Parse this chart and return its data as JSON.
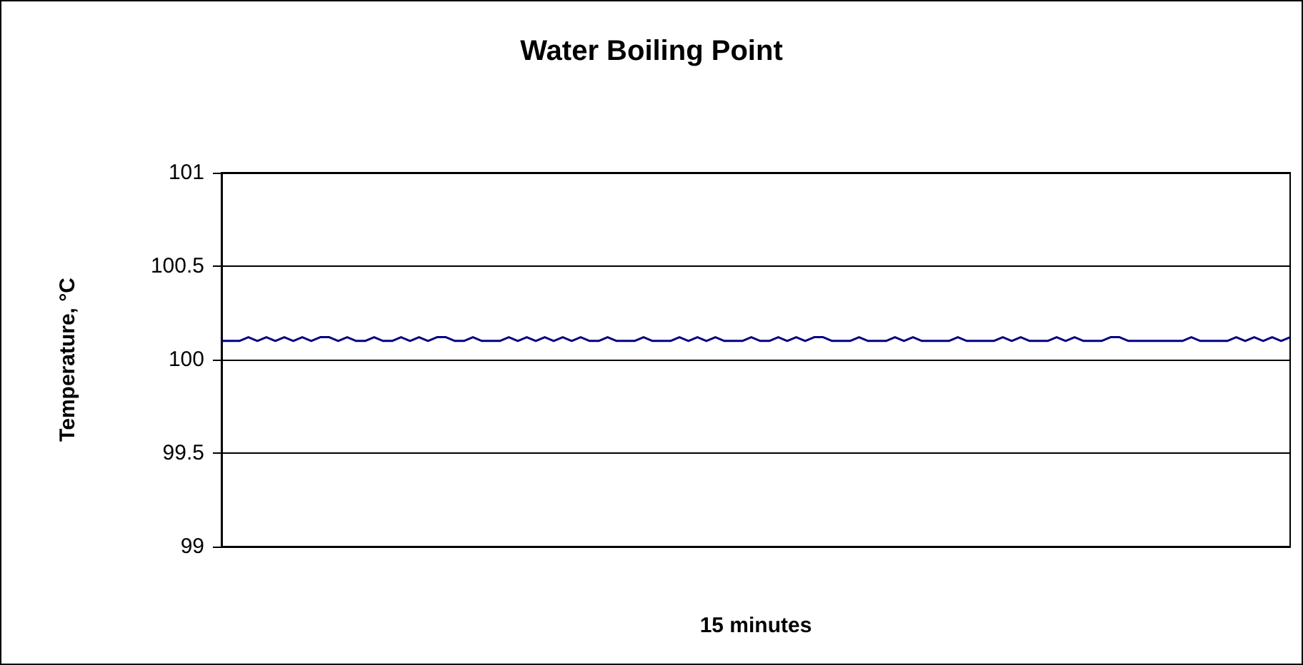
{
  "chart_data": {
    "type": "line",
    "title": "Water Boiling Point",
    "xlabel": "15 minutes",
    "ylabel": "Temperature, °C",
    "ylim": [
      99,
      101
    ],
    "yticks": [
      99,
      99.5,
      100,
      100.5,
      101
    ],
    "grid": "y",
    "marker": "none",
    "line_style": "solid",
    "categories": [
      null,
      null,
      null,
      null,
      null,
      null,
      null,
      null,
      null,
      null,
      null,
      null,
      null,
      null,
      null,
      null,
      null,
      null,
      null,
      null,
      null,
      null,
      null,
      null,
      null,
      null,
      null,
      null,
      null,
      null,
      null,
      null,
      null,
      null,
      null,
      null,
      null,
      null,
      null,
      null,
      null,
      null,
      null,
      null,
      null,
      null,
      null,
      null,
      null,
      null,
      null,
      null,
      null,
      null,
      null,
      null,
      null,
      null,
      null,
      null,
      null,
      null,
      null,
      null,
      null,
      null,
      null,
      null,
      null,
      null,
      null,
      null,
      null,
      null,
      null,
      null,
      null,
      null,
      null,
      null,
      null,
      null,
      null,
      null,
      null,
      null,
      null,
      null,
      null,
      null,
      null,
      null,
      null,
      null,
      null,
      null,
      null,
      null,
      null,
      null,
      null,
      null,
      null,
      null,
      null,
      null,
      null,
      null,
      null,
      null,
      null,
      null,
      null,
      null,
      null,
      null,
      null,
      null,
      null,
      null
    ],
    "series": [
      {
        "color": "#000080",
        "values": [
          100.1,
          100.1,
          100.1,
          100.12,
          100.1,
          100.12,
          100.1,
          100.12,
          100.1,
          100.12,
          100.1,
          100.12,
          100.12,
          100.1,
          100.12,
          100.1,
          100.1,
          100.12,
          100.1,
          100.1,
          100.12,
          100.1,
          100.12,
          100.1,
          100.12,
          100.12,
          100.1,
          100.1,
          100.12,
          100.1,
          100.1,
          100.1,
          100.12,
          100.1,
          100.12,
          100.1,
          100.12,
          100.1,
          100.12,
          100.1,
          100.12,
          100.1,
          100.1,
          100.12,
          100.1,
          100.1,
          100.1,
          100.12,
          100.1,
          100.1,
          100.1,
          100.12,
          100.1,
          100.12,
          100.1,
          100.12,
          100.1,
          100.1,
          100.1,
          100.12,
          100.1,
          100.1,
          100.12,
          100.1,
          100.12,
          100.1,
          100.12,
          100.12,
          100.1,
          100.1,
          100.1,
          100.12,
          100.1,
          100.1,
          100.1,
          100.12,
          100.1,
          100.12,
          100.1,
          100.1,
          100.1,
          100.1,
          100.12,
          100.1,
          100.1,
          100.1,
          100.1,
          100.12,
          100.1,
          100.12,
          100.1,
          100.1,
          100.1,
          100.12,
          100.1,
          100.12,
          100.1,
          100.1,
          100.1,
          100.12,
          100.12,
          100.1,
          100.1,
          100.1,
          100.1,
          100.1,
          100.1,
          100.1,
          100.12,
          100.1,
          100.1,
          100.1,
          100.1,
          100.12,
          100.1,
          100.12,
          100.1,
          100.12,
          100.1,
          100.12
        ]
      }
    ]
  }
}
